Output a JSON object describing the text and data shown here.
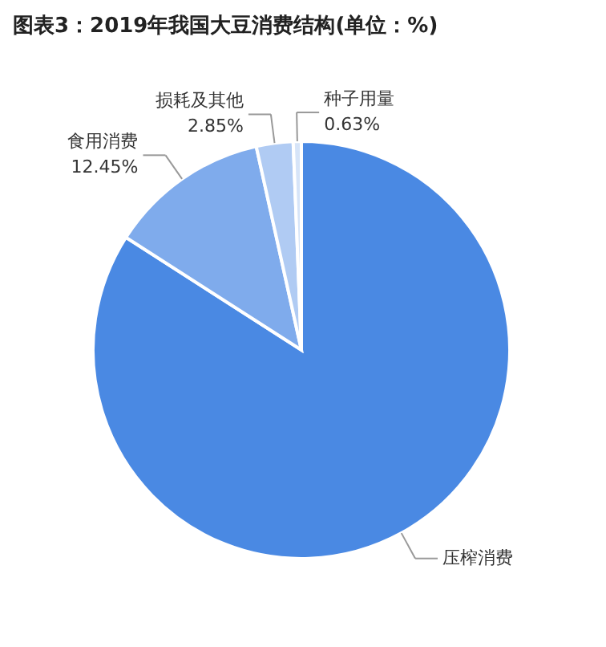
{
  "chart_data": {
    "type": "pie",
    "title": "图表3：2019年我国大豆消费结构(单位：%)",
    "categories": [
      "压榨消费",
      "食用消费",
      "损耗及其他",
      "种子用量"
    ],
    "values": [
      84.07,
      12.45,
      2.85,
      0.63
    ],
    "value_labels": [
      null,
      "12.45%",
      "2.85%",
      "0.63%"
    ],
    "colors": [
      "#4a89e3",
      "#7fabec",
      "#b0cbf3",
      "#d6e4f8"
    ]
  }
}
